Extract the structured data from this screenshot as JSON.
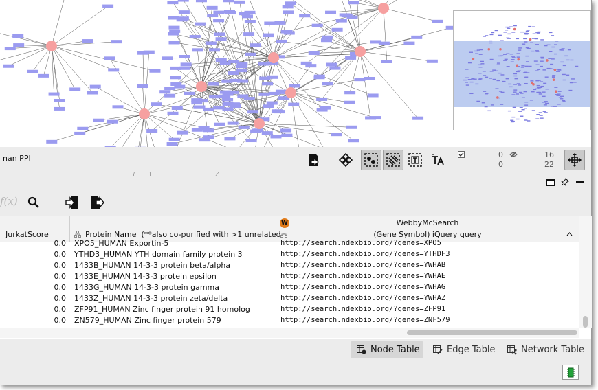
{
  "network": {
    "name": "nan PPI",
    "stats": {
      "selected_nodes": "0",
      "selected_edges": "0",
      "visible_nodes": "16",
      "visible_edges": "22"
    }
  },
  "toolbar_icons": [
    "export-network-icon",
    "layout-icon",
    "select-nodes-icon",
    "select-edges-icon",
    "annotation-text-icon",
    "font-size-icon",
    "checkbox-icon",
    "eye-hidden-icon",
    "fit-content-icon"
  ],
  "table_toolbar": {
    "function_placeholder": "f(x)",
    "icons": [
      "search-icon",
      "import-table-icon",
      "export-table-icon"
    ]
  },
  "columns": {
    "jurkat": "JurkatScore",
    "protein": "Protein Name  (**also co-purified with >1 unrelated",
    "webby_title": "WebbyMcSearch",
    "webby_sub": "(Gene Symbol) iQuery query",
    "webby_badge": "W"
  },
  "rows": [
    {
      "score": "0.0",
      "protein": "XPO5_HUMAN Exportin-5",
      "url": "http://search.ndexbio.org/?genes=XPO5"
    },
    {
      "score": "0.0",
      "protein": "YTHD3_HUMAN YTH domain family protein 3",
      "url": "http://search.ndexbio.org/?genes=YTHDF3"
    },
    {
      "score": "0.0",
      "protein": "1433B_HUMAN 14-3-3 protein beta/alpha",
      "url": "http://search.ndexbio.org/?genes=YWHAB"
    },
    {
      "score": "0.0",
      "protein": "1433E_HUMAN 14-3-3 protein epsilon",
      "url": "http://search.ndexbio.org/?genes=YWHAE"
    },
    {
      "score": "0.0",
      "protein": "1433G_HUMAN 14-3-3 protein gamma",
      "url": "http://search.ndexbio.org/?genes=YWHAG"
    },
    {
      "score": "0.0",
      "protein": "1433Z_HUMAN 14-3-3 protein zeta/delta",
      "url": "http://search.ndexbio.org/?genes=YWHAZ"
    },
    {
      "score": "0.0",
      "protein": "ZFP91_HUMAN Zinc finger protein 91 homolog",
      "url": "http://search.ndexbio.org/?genes=ZFP91"
    },
    {
      "score": "0.0",
      "protein": "ZN579_HUMAN Zinc finger protein 579",
      "url": "http://search.ndexbio.org/?genes=ZNF579"
    }
  ],
  "tabs": {
    "node": "Node Table",
    "edge": "Edge Table",
    "network": "Network Table"
  },
  "colors": {
    "hub_node": "#f6a0a0",
    "leaf_node": "#9b9bf0",
    "edge": "#555555",
    "viewport": "#bcccf0",
    "scroll_thumb": "#c2c2c2"
  }
}
